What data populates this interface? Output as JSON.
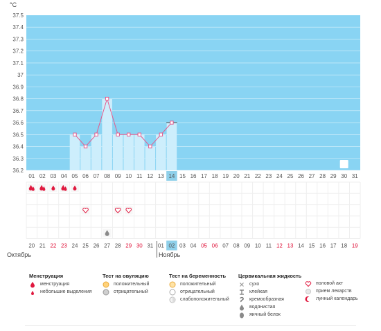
{
  "chart_data": {
    "type": "line",
    "unit": "°C",
    "y_ticks": [
      "37.5",
      "37.4",
      "37.3",
      "37.2",
      "37.1",
      "37",
      "36.9",
      "36.8",
      "36.7",
      "36.6",
      "36.5",
      "36.4",
      "36.3",
      "36.2"
    ],
    "ylim": [
      36.2,
      37.5
    ],
    "days": [
      "01",
      "02",
      "03",
      "04",
      "05",
      "06",
      "07",
      "08",
      "09",
      "10",
      "11",
      "12",
      "13",
      "14",
      "15",
      "16",
      "17",
      "18",
      "19",
      "20",
      "21",
      "22",
      "23",
      "24",
      "25",
      "26",
      "27",
      "28",
      "29",
      "30",
      "31"
    ],
    "highlight_day": "14",
    "series": [
      {
        "x": [
          "05",
          "06",
          "07",
          "08",
          "09",
          "10",
          "11",
          "12",
          "13",
          "14"
        ],
        "values": [
          36.5,
          36.4,
          36.5,
          36.8,
          36.5,
          36.5,
          36.5,
          36.4,
          36.5,
          36.6
        ]
      }
    ],
    "moon_day": "30",
    "cycle_days": [
      {
        "label": "20",
        "red": false
      },
      {
        "label": "21",
        "red": false
      },
      {
        "label": "22",
        "red": true
      },
      {
        "label": "23",
        "red": true
      },
      {
        "label": "24",
        "red": false
      },
      {
        "label": "25",
        "red": false
      },
      {
        "label": "26",
        "red": false
      },
      {
        "label": "27",
        "red": false
      },
      {
        "label": "28",
        "red": false
      },
      {
        "label": "29",
        "red": true
      },
      {
        "label": "30",
        "red": true
      },
      {
        "label": "31",
        "red": false
      },
      {
        "label": "01",
        "red": false
      },
      {
        "label": "02",
        "red": false,
        "highlight": true
      },
      {
        "label": "03",
        "red": false
      },
      {
        "label": "04",
        "red": false
      },
      {
        "label": "05",
        "red": true
      },
      {
        "label": "06",
        "red": true
      },
      {
        "label": "07",
        "red": false
      },
      {
        "label": "08",
        "red": false
      },
      {
        "label": "09",
        "red": false
      },
      {
        "label": "10",
        "red": false
      },
      {
        "label": "11",
        "red": false
      },
      {
        "label": "12",
        "red": true
      },
      {
        "label": "13",
        "red": true
      },
      {
        "label": "14",
        "red": false
      },
      {
        "label": "15",
        "red": false
      },
      {
        "label": "16",
        "red": false
      },
      {
        "label": "17",
        "red": false
      },
      {
        "label": "18",
        "red": false
      },
      {
        "label": "19",
        "red": true
      }
    ],
    "months": {
      "first": "Октябрь",
      "second": "Ноябрь"
    },
    "events": {
      "menstruation": [
        "01",
        "02",
        "04"
      ],
      "light_spotting": [
        "03",
        "05"
      ],
      "intercourse": [
        "06",
        "09",
        "10"
      ],
      "watery_mucus": [
        "08"
      ]
    }
  },
  "colors": {
    "plot_bg": "#89d4f3",
    "bar_fill": "#cdeefc",
    "line": "#e65a8c",
    "highlight": "#8fd0ea",
    "red_text": "#e0193f",
    "grid": "#ffffff"
  },
  "legend": {
    "menstruation": {
      "title": "Менструация",
      "items": [
        {
          "icon": "menstruation-drop-icon",
          "label": "менструация"
        },
        {
          "icon": "spotting-drop-icon",
          "label": "небольшие выделения"
        }
      ]
    },
    "ovulation": {
      "title": "Тест на овуляцию",
      "items": [
        {
          "icon": "ovulation-positive-icon",
          "label": "положительный"
        },
        {
          "icon": "ovulation-negative-icon",
          "label": "отрицательный"
        }
      ]
    },
    "pregnancy": {
      "title": "Тест на беременность",
      "items": [
        {
          "icon": "pregnancy-positive-icon",
          "label": "положительный"
        },
        {
          "icon": "pregnancy-negative-icon",
          "label": "отрицательный"
        },
        {
          "icon": "pregnancy-weak-icon",
          "label": "слабоположительный"
        }
      ]
    },
    "mucus": {
      "title": "Цервикальная жидкость",
      "items": [
        {
          "icon": "dry-icon",
          "label": "сухо"
        },
        {
          "icon": "sticky-icon",
          "label": "клейкая"
        },
        {
          "icon": "creamy-icon",
          "label": "кремообразная"
        },
        {
          "icon": "watery-icon",
          "label": "водянистая"
        },
        {
          "icon": "egg-white-icon",
          "label": "яичный белок"
        }
      ]
    },
    "other": {
      "items": [
        {
          "icon": "heart-icon",
          "label": "половой акт"
        },
        {
          "icon": "pill-icon",
          "label": "прием лекарств"
        },
        {
          "icon": "moon-icon",
          "label": "лунный календарь"
        }
      ]
    }
  }
}
